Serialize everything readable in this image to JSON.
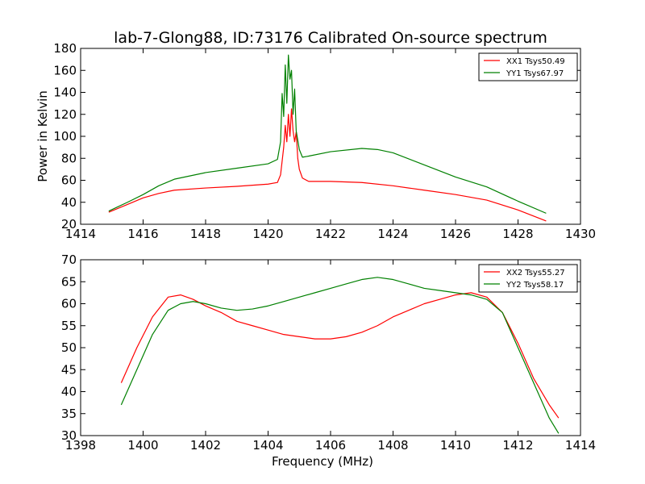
{
  "figure": {
    "title": "lab-7-Glong88, ID:73176 Calibrated On-source spectrum"
  },
  "chart_data": [
    {
      "type": "line",
      "title": "lab-7-Glong88, ID:73176 Calibrated On-source spectrum",
      "xlabel": "",
      "ylabel": "Power in Kelvin",
      "xlim": [
        1414,
        1430
      ],
      "ylim": [
        20,
        180
      ],
      "xticks": [
        1414,
        1416,
        1418,
        1420,
        1422,
        1424,
        1426,
        1428,
        1430
      ],
      "yticks": [
        20,
        40,
        60,
        80,
        100,
        120,
        140,
        160,
        180
      ],
      "grid": false,
      "legend": "top-right",
      "series": [
        {
          "name": "XX1 Tsys50.49",
          "color": "#ff0000",
          "points": [
            [
              1414.9,
              31
            ],
            [
              1415.5,
              38
            ],
            [
              1416,
              44
            ],
            [
              1416.5,
              48
            ],
            [
              1417,
              51
            ],
            [
              1418,
              53
            ],
            [
              1419,
              54.5
            ],
            [
              1420,
              56.5
            ],
            [
              1420.3,
              58
            ],
            [
              1420.4,
              65
            ],
            [
              1420.5,
              90
            ],
            [
              1420.55,
              110
            ],
            [
              1420.6,
              95
            ],
            [
              1420.65,
              120
            ],
            [
              1420.7,
              100
            ],
            [
              1420.75,
              125
            ],
            [
              1420.8,
              105
            ],
            [
              1420.85,
              95
            ],
            [
              1420.9,
              104
            ],
            [
              1420.95,
              80
            ],
            [
              1421.0,
              70
            ],
            [
              1421.1,
              62
            ],
            [
              1421.3,
              59
            ],
            [
              1422,
              59
            ],
            [
              1423,
              58
            ],
            [
              1424,
              55
            ],
            [
              1425,
              51
            ],
            [
              1426,
              47
            ],
            [
              1427,
              42
            ],
            [
              1428,
              33
            ],
            [
              1428.9,
              23
            ]
          ]
        },
        {
          "name": "YY1 Tsys67.97",
          "color": "#008000",
          "points": [
            [
              1414.9,
              32
            ],
            [
              1415.5,
              40
            ],
            [
              1416,
              47
            ],
            [
              1416.5,
              55
            ],
            [
              1417,
              61
            ],
            [
              1418,
              67
            ],
            [
              1419,
              71
            ],
            [
              1420,
              75
            ],
            [
              1420.3,
              79
            ],
            [
              1420.4,
              95
            ],
            [
              1420.45,
              139
            ],
            [
              1420.5,
              118
            ],
            [
              1420.55,
              165
            ],
            [
              1420.6,
              130
            ],
            [
              1420.65,
              174
            ],
            [
              1420.7,
              152
            ],
            [
              1420.75,
              160
            ],
            [
              1420.8,
              120
            ],
            [
              1420.85,
              143
            ],
            [
              1420.9,
              105
            ],
            [
              1421.0,
              88
            ],
            [
              1421.1,
              81
            ],
            [
              1421.3,
              82
            ],
            [
              1422,
              86
            ],
            [
              1423,
              89
            ],
            [
              1423.5,
              88
            ],
            [
              1424,
              85
            ],
            [
              1425,
              74
            ],
            [
              1426,
              63
            ],
            [
              1427,
              54
            ],
            [
              1428,
              41
            ],
            [
              1428.9,
              30
            ]
          ]
        }
      ]
    },
    {
      "type": "line",
      "title": "",
      "xlabel": "Frequency (MHz)",
      "ylabel": "",
      "xlim": [
        1398,
        1414
      ],
      "ylim": [
        30,
        70
      ],
      "xticks": [
        1398,
        1400,
        1402,
        1404,
        1406,
        1408,
        1410,
        1412,
        1414
      ],
      "yticks": [
        30,
        35,
        40,
        45,
        50,
        55,
        60,
        65,
        70
      ],
      "grid": false,
      "legend": "top-right",
      "series": [
        {
          "name": "XX2 Tsys55.27",
          "color": "#ff0000",
          "points": [
            [
              1399.3,
              42
            ],
            [
              1399.8,
              50
            ],
            [
              1400.3,
              57
            ],
            [
              1400.8,
              61.5
            ],
            [
              1401.2,
              62
            ],
            [
              1401.6,
              61
            ],
            [
              1402,
              59.5
            ],
            [
              1402.5,
              58
            ],
            [
              1403,
              56
            ],
            [
              1403.5,
              55
            ],
            [
              1404,
              54
            ],
            [
              1404.5,
              53
            ],
            [
              1405,
              52.5
            ],
            [
              1405.5,
              52
            ],
            [
              1406,
              52
            ],
            [
              1406.5,
              52.5
            ],
            [
              1407,
              53.5
            ],
            [
              1407.5,
              55
            ],
            [
              1408,
              57
            ],
            [
              1408.5,
              58.5
            ],
            [
              1409,
              60
            ],
            [
              1409.5,
              61
            ],
            [
              1410,
              62
            ],
            [
              1410.5,
              62.5
            ],
            [
              1411,
              61.5
            ],
            [
              1411.5,
              58
            ],
            [
              1412,
              51
            ],
            [
              1412.5,
              43
            ],
            [
              1413,
              37
            ],
            [
              1413.3,
              34
            ]
          ]
        },
        {
          "name": "YY2 Tsys58.17",
          "color": "#008000",
          "points": [
            [
              1399.3,
              37
            ],
            [
              1399.8,
              45
            ],
            [
              1400.3,
              53
            ],
            [
              1400.8,
              58.5
            ],
            [
              1401.2,
              60
            ],
            [
              1401.6,
              60.5
            ],
            [
              1402,
              60
            ],
            [
              1402.5,
              59
            ],
            [
              1403,
              58.5
            ],
            [
              1403.5,
              58.8
            ],
            [
              1404,
              59.5
            ],
            [
              1404.5,
              60.5
            ],
            [
              1405,
              61.5
            ],
            [
              1405.5,
              62.5
            ],
            [
              1406,
              63.5
            ],
            [
              1406.5,
              64.5
            ],
            [
              1407,
              65.5
            ],
            [
              1407.5,
              66
            ],
            [
              1408,
              65.5
            ],
            [
              1408.5,
              64.5
            ],
            [
              1409,
              63.5
            ],
            [
              1409.5,
              63
            ],
            [
              1410,
              62.5
            ],
            [
              1410.5,
              62
            ],
            [
              1411,
              61
            ],
            [
              1411.5,
              58
            ],
            [
              1412,
              50
            ],
            [
              1412.5,
              42
            ],
            [
              1413,
              34
            ],
            [
              1413.3,
              30.5
            ]
          ]
        }
      ]
    }
  ]
}
